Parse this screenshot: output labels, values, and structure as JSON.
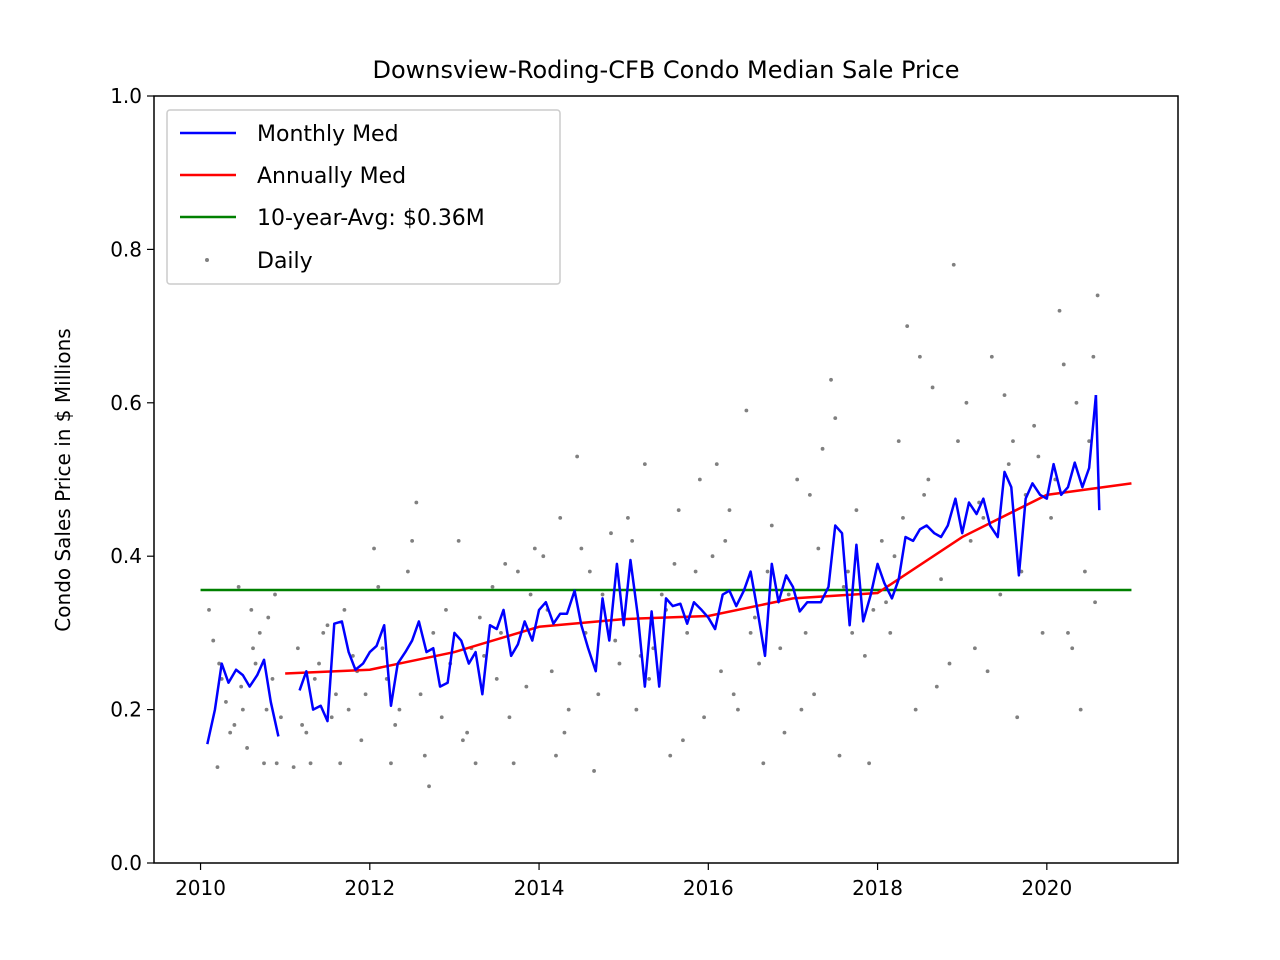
{
  "chart_data": {
    "type": "line",
    "title": "Downsview-Roding-CFB Condo Median Sale Price",
    "xlabel": "",
    "ylabel": "Condo Sales Price in $ Millions",
    "xlim": [
      2009.45,
      2021.55
    ],
    "ylim": [
      0.0,
      1.0
    ],
    "xticks": [
      2010,
      2012,
      2014,
      2016,
      2018,
      2020
    ],
    "yticks": [
      0.0,
      0.2,
      0.4,
      0.6,
      0.8,
      1.0
    ],
    "grid": false,
    "legend_position": "top-left",
    "colors": {
      "monthly": "#0000ff",
      "annual": "#ff0000",
      "avg": "#008000",
      "daily": "#808080"
    },
    "series": [
      {
        "name": "Monthly Med",
        "segments": [
          {
            "x": [
              2010.08,
              2010.17,
              2010.25,
              2010.33,
              2010.42,
              2010.5,
              2010.58,
              2010.67,
              2010.75,
              2010.83,
              2010.92
            ],
            "y": [
              0.155,
              0.2,
              0.26,
              0.235,
              0.252,
              0.245,
              0.23,
              0.245,
              0.265,
              0.21,
              0.165
            ]
          },
          {
            "x": [
              2011.17,
              2011.25,
              2011.33,
              2011.42,
              2011.5,
              2011.58,
              2011.67,
              2011.75,
              2011.83,
              2011.92,
              2012.0,
              2012.08,
              2012.17,
              2012.25,
              2012.33,
              2012.42,
              2012.5,
              2012.58,
              2012.67,
              2012.75,
              2012.83,
              2012.92,
              2013.0,
              2013.08,
              2013.17,
              2013.25,
              2013.33,
              2013.42,
              2013.5,
              2013.58,
              2013.67,
              2013.75,
              2013.83,
              2013.92,
              2014.0,
              2014.08,
              2014.17,
              2014.25,
              2014.33,
              2014.42,
              2014.5,
              2014.58,
              2014.67,
              2014.75,
              2014.83,
              2014.92,
              2015.0,
              2015.08,
              2015.17,
              2015.25,
              2015.33,
              2015.42,
              2015.5,
              2015.58,
              2015.67,
              2015.75,
              2015.83,
              2015.92,
              2016.0,
              2016.08,
              2016.17,
              2016.25,
              2016.33,
              2016.42,
              2016.5,
              2016.58,
              2016.67,
              2016.75,
              2016.83,
              2016.92,
              2017.0,
              2017.08,
              2017.17,
              2017.25,
              2017.33,
              2017.42,
              2017.5,
              2017.58,
              2017.67,
              2017.75,
              2017.83,
              2017.92,
              2018.0,
              2018.08,
              2018.17,
              2018.25,
              2018.33,
              2018.42,
              2018.5,
              2018.58,
              2018.67,
              2018.75,
              2018.83,
              2018.92,
              2019.0,
              2019.08,
              2019.17,
              2019.25,
              2019.33,
              2019.42,
              2019.5,
              2019.58,
              2019.67,
              2019.75,
              2019.83,
              2019.92,
              2020.0,
              2020.08,
              2020.17,
              2020.25,
              2020.33,
              2020.42,
              2020.5,
              2020.58
            ],
            "y": [
              0.225,
              0.25,
              0.2,
              0.205,
              0.185,
              0.312,
              0.315,
              0.275,
              0.252,
              0.26,
              0.275,
              0.283,
              0.31,
              0.205,
              0.26,
              0.275,
              0.29,
              0.315,
              0.275,
              0.28,
              0.23,
              0.235,
              0.3,
              0.29,
              0.26,
              0.275,
              0.22,
              0.31,
              0.305,
              0.33,
              0.27,
              0.285,
              0.315,
              0.29,
              0.33,
              0.34,
              0.312,
              0.325,
              0.325,
              0.355,
              0.31,
              0.28,
              0.25,
              0.345,
              0.29,
              0.39,
              0.31,
              0.395,
              0.32,
              0.23,
              0.328,
              0.23,
              0.345,
              0.335,
              0.338,
              0.312,
              0.34,
              0.33,
              0.32,
              0.305,
              0.35,
              0.355,
              0.335,
              0.355,
              0.38,
              0.33,
              0.27,
              0.39,
              0.34,
              0.375,
              0.36,
              0.328,
              0.34,
              0.34,
              0.34,
              0.36,
              0.44,
              0.43,
              0.31,
              0.415,
              0.315,
              0.35,
              0.39,
              0.365,
              0.345,
              0.37,
              0.425,
              0.42,
              0.435,
              0.44,
              0.43,
              0.425,
              0.44,
              0.475,
              0.43,
              0.47,
              0.455,
              0.475,
              0.44,
              0.425,
              0.51,
              0.49,
              0.375,
              0.475,
              0.495,
              0.48,
              0.475,
              0.52,
              0.48,
              0.49,
              0.522,
              0.49,
              0.515,
              0.61
            ]
          },
          {
            "x": [
              2020.58,
              2020.62
            ],
            "y": [
              0.61,
              0.46
            ]
          }
        ]
      },
      {
        "name": "Annually Med",
        "x": [
          2011.0,
          2012.0,
          2013.0,
          2014.0,
          2015.0,
          2016.0,
          2017.0,
          2018.0,
          2019.0,
          2020.0,
          2021.0
        ],
        "y": [
          0.247,
          0.252,
          0.275,
          0.308,
          0.318,
          0.322,
          0.345,
          0.352,
          0.425,
          0.48,
          0.495
        ]
      },
      {
        "name": "10-year-Avg: $0.36M",
        "x": [
          2010.0,
          2021.0
        ],
        "y": [
          0.356,
          0.356
        ]
      },
      {
        "name": "Daily",
        "type": "scatter",
        "x": [
          2010.1,
          2010.2,
          2010.15,
          2010.25,
          2010.3,
          2010.4,
          2010.45,
          2010.5,
          2010.55,
          2010.6,
          2010.65,
          2010.7,
          2010.75,
          2010.8,
          2010.85,
          2010.9,
          2010.95,
          2010.22,
          2010.35,
          2010.48,
          2010.62,
          2010.78,
          2010.88,
          2011.1,
          2011.2,
          2011.3,
          2011.4,
          2011.5,
          2011.6,
          2011.7,
          2011.8,
          2011.9,
          2011.15,
          2011.35,
          2011.45,
          2011.55,
          2011.65,
          2011.75,
          2011.85,
          2011.95,
          2011.25,
          2012.05,
          2012.15,
          2012.25,
          2012.35,
          2012.45,
          2012.55,
          2012.65,
          2012.75,
          2012.85,
          2012.95,
          2012.1,
          2012.3,
          2012.5,
          2012.7,
          2012.9,
          2012.2,
          2012.6,
          2013.05,
          2013.15,
          2013.25,
          2013.35,
          2013.45,
          2013.55,
          2013.65,
          2013.75,
          2013.85,
          2013.95,
          2013.1,
          2013.3,
          2013.5,
          2013.7,
          2013.9,
          2013.2,
          2013.6,
          2014.05,
          2014.15,
          2014.25,
          2014.35,
          2014.45,
          2014.55,
          2014.65,
          2014.75,
          2014.85,
          2014.95,
          2014.1,
          2014.3,
          2014.5,
          2014.7,
          2014.9,
          2014.2,
          2014.6,
          2015.05,
          2015.15,
          2015.25,
          2015.35,
          2015.45,
          2015.55,
          2015.65,
          2015.75,
          2015.85,
          2015.95,
          2015.1,
          2015.3,
          2015.5,
          2015.7,
          2015.9,
          2015.2,
          2015.6,
          2016.05,
          2016.15,
          2016.25,
          2016.35,
          2016.45,
          2016.55,
          2016.65,
          2016.75,
          2016.85,
          2016.95,
          2016.1,
          2016.3,
          2016.5,
          2016.7,
          2016.9,
          2016.2,
          2016.6,
          2017.05,
          2017.15,
          2017.25,
          2017.35,
          2017.45,
          2017.55,
          2017.65,
          2017.75,
          2017.85,
          2017.95,
          2017.1,
          2017.3,
          2017.5,
          2017.7,
          2017.9,
          2017.2,
          2017.6,
          2018.05,
          2018.15,
          2018.25,
          2018.35,
          2018.45,
          2018.55,
          2018.65,
          2018.75,
          2018.85,
          2018.95,
          2018.1,
          2018.3,
          2018.5,
          2018.7,
          2018.9,
          2018.2,
          2018.6,
          2019.05,
          2019.15,
          2019.25,
          2019.35,
          2019.45,
          2019.55,
          2019.65,
          2019.75,
          2019.85,
          2019.95,
          2019.1,
          2019.3,
          2019.5,
          2019.7,
          2019.9,
          2019.2,
          2019.6,
          2020.05,
          2020.15,
          2020.25,
          2020.35,
          2020.45,
          2020.55,
          2020.6,
          2020.1,
          2020.3,
          2020.5,
          2020.4,
          2020.2,
          2020.57
        ],
        "y": [
          0.33,
          0.125,
          0.29,
          0.24,
          0.21,
          0.18,
          0.36,
          0.2,
          0.15,
          0.33,
          0.26,
          0.3,
          0.13,
          0.32,
          0.24,
          0.13,
          0.19,
          0.26,
          0.17,
          0.23,
          0.28,
          0.2,
          0.35,
          0.125,
          0.18,
          0.13,
          0.26,
          0.31,
          0.22,
          0.33,
          0.27,
          0.16,
          0.28,
          0.24,
          0.3,
          0.19,
          0.13,
          0.2,
          0.25,
          0.22,
          0.17,
          0.41,
          0.28,
          0.13,
          0.2,
          0.38,
          0.47,
          0.14,
          0.3,
          0.19,
          0.26,
          0.36,
          0.18,
          0.42,
          0.1,
          0.33,
          0.24,
          0.22,
          0.42,
          0.17,
          0.13,
          0.27,
          0.36,
          0.3,
          0.19,
          0.38,
          0.23,
          0.41,
          0.16,
          0.32,
          0.24,
          0.13,
          0.35,
          0.28,
          0.39,
          0.4,
          0.25,
          0.45,
          0.2,
          0.53,
          0.3,
          0.12,
          0.35,
          0.43,
          0.26,
          0.33,
          0.17,
          0.41,
          0.22,
          0.29,
          0.14,
          0.38,
          0.45,
          0.2,
          0.52,
          0.28,
          0.35,
          0.14,
          0.46,
          0.3,
          0.38,
          0.19,
          0.42,
          0.24,
          0.33,
          0.16,
          0.5,
          0.27,
          0.39,
          0.4,
          0.25,
          0.46,
          0.2,
          0.59,
          0.32,
          0.13,
          0.44,
          0.28,
          0.35,
          0.52,
          0.22,
          0.3,
          0.38,
          0.17,
          0.42,
          0.26,
          0.5,
          0.3,
          0.22,
          0.54,
          0.63,
          0.14,
          0.38,
          0.46,
          0.27,
          0.33,
          0.2,
          0.41,
          0.58,
          0.3,
          0.13,
          0.48,
          0.36,
          0.42,
          0.3,
          0.55,
          0.7,
          0.2,
          0.48,
          0.62,
          0.37,
          0.26,
          0.55,
          0.34,
          0.45,
          0.66,
          0.23,
          0.78,
          0.4,
          0.5,
          0.6,
          0.28,
          0.45,
          0.66,
          0.35,
          0.52,
          0.19,
          0.48,
          0.57,
          0.3,
          0.42,
          0.25,
          0.61,
          0.38,
          0.53,
          0.47,
          0.55,
          0.45,
          0.72,
          0.3,
          0.6,
          0.38,
          0.66,
          0.74,
          0.5,
          0.28,
          0.55,
          0.2,
          0.65,
          0.34
        ]
      }
    ]
  }
}
